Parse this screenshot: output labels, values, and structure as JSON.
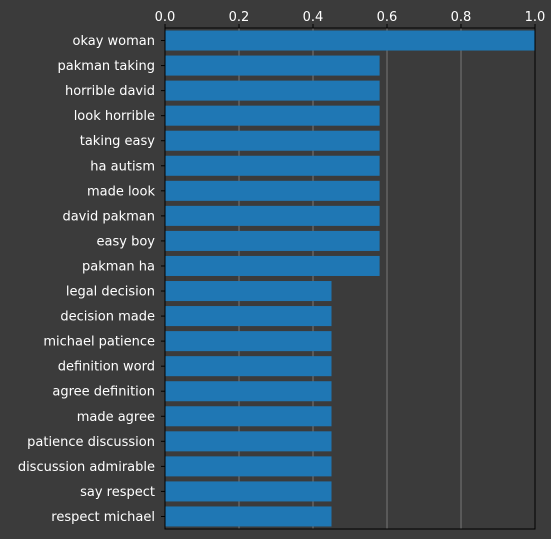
{
  "chart_data": {
    "type": "bar",
    "orientation": "horizontal",
    "categories": [
      "okay woman",
      "pakman taking",
      "horrible david",
      "look horrible",
      "taking easy",
      "ha autism",
      "made look",
      "david pakman",
      "easy boy",
      "pakman ha",
      "legal decision",
      "decision made",
      "michael patience",
      "definition word",
      "agree definition",
      "made agree",
      "patience discussion",
      "discussion admirable",
      "say respect",
      "respect michael"
    ],
    "values": [
      1.0,
      0.58,
      0.58,
      0.58,
      0.58,
      0.58,
      0.58,
      0.58,
      0.58,
      0.58,
      0.45,
      0.45,
      0.45,
      0.45,
      0.45,
      0.45,
      0.45,
      0.45,
      0.45,
      0.45
    ],
    "xlim": [
      0,
      1.0
    ],
    "xticks": [
      "0.0",
      "0.2",
      "0.4",
      "0.6",
      "0.8",
      "1.0"
    ],
    "x_axis_position": "top",
    "grid": true,
    "bar_color": "#1f77b4",
    "background_color": "#3b3b3b",
    "grid_color": "#888888",
    "title": "",
    "xlabel": "",
    "ylabel": ""
  }
}
